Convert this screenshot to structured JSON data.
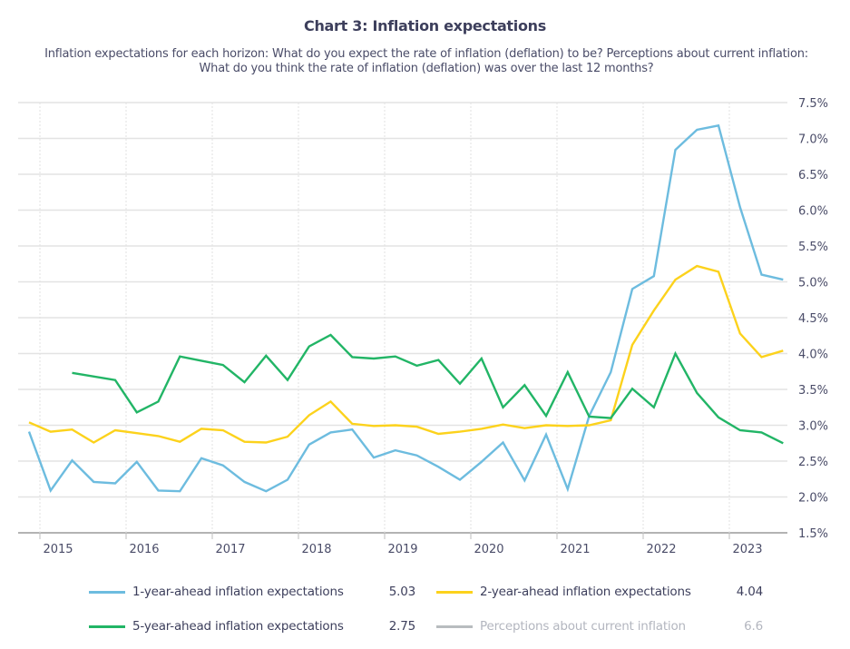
{
  "chart_data": {
    "type": "line",
    "title": "Chart 3: Inflation expectations",
    "subtitle": "Inflation expectations for each horizon: What do you expect the rate of inflation (deflation) to be? Perceptions about current inflation: What do you think the rate of inflation (deflation) was over the last 12 months?",
    "xlabel": "",
    "ylabel": "",
    "x": [
      "2014Q4",
      "2015Q1",
      "2015Q2",
      "2015Q3",
      "2015Q4",
      "2016Q1",
      "2016Q2",
      "2016Q3",
      "2016Q4",
      "2017Q1",
      "2017Q2",
      "2017Q3",
      "2017Q4",
      "2018Q1",
      "2018Q2",
      "2018Q3",
      "2018Q4",
      "2019Q1",
      "2019Q2",
      "2019Q3",
      "2019Q4",
      "2020Q1",
      "2020Q2",
      "2020Q3",
      "2020Q4",
      "2021Q1",
      "2021Q2",
      "2021Q3",
      "2021Q4",
      "2022Q1",
      "2022Q2",
      "2022Q3",
      "2022Q4",
      "2023Q1",
      "2023Q2",
      "2023Q3"
    ],
    "x_tick_labels": [
      "2015",
      "2016",
      "2017",
      "2018",
      "2019",
      "2020",
      "2021",
      "2022",
      "2023"
    ],
    "y_tick_labels": [
      "7.5%",
      "7.0%",
      "6.5%",
      "6.0%",
      "5.5%",
      "5.0%",
      "4.5%",
      "4.0%",
      "3.5%",
      "3.0%",
      "2.5%",
      "2.0%",
      "1.5%"
    ],
    "ylim": [
      1.5,
      7.5
    ],
    "y_axis_position": "right",
    "grid": true,
    "legend_position": "bottom",
    "series": [
      {
        "name": "1-year-ahead inflation expectations",
        "color": "#6dbcdf",
        "latest": "5.03",
        "visible": true,
        "values": [
          2.91,
          2.09,
          2.51,
          2.21,
          2.19,
          2.49,
          2.09,
          2.08,
          2.54,
          2.44,
          2.21,
          2.08,
          2.24,
          2.73,
          2.9,
          2.94,
          2.55,
          2.65,
          2.58,
          2.42,
          2.24,
          2.49,
          2.76,
          2.23,
          2.87,
          2.11,
          3.13,
          3.74,
          4.9,
          5.08,
          6.84,
          7.12,
          7.18,
          6.04,
          5.1,
          5.03
        ]
      },
      {
        "name": "2-year-ahead inflation expectations",
        "color": "#fcd21c",
        "latest": "4.04",
        "visible": true,
        "values": [
          3.04,
          2.91,
          2.94,
          2.76,
          2.93,
          2.89,
          2.85,
          2.77,
          2.95,
          2.93,
          2.77,
          2.76,
          2.84,
          3.14,
          3.33,
          3.02,
          2.99,
          3.0,
          2.98,
          2.88,
          2.91,
          2.95,
          3.01,
          2.96,
          3.0,
          2.99,
          3.0,
          3.07,
          4.12,
          4.6,
          5.03,
          5.22,
          5.14,
          4.28,
          3.95,
          4.04
        ]
      },
      {
        "name": "5-year-ahead inflation expectations",
        "color": "#22b566",
        "latest": "2.75",
        "visible": true,
        "values": [
          null,
          null,
          3.73,
          null,
          3.63,
          3.18,
          3.33,
          3.96,
          3.9,
          3.84,
          3.6,
          3.97,
          3.63,
          4.1,
          4.26,
          3.95,
          3.93,
          3.96,
          3.83,
          3.91,
          3.58,
          3.93,
          3.25,
          3.56,
          3.13,
          3.74,
          3.12,
          3.1,
          3.51,
          3.25,
          4.0,
          3.45,
          3.11,
          2.93,
          2.9,
          2.75
        ]
      },
      {
        "name": "Perceptions about current inflation",
        "color": "#b8bcbf",
        "latest": "6.6",
        "visible": false,
        "values": []
      }
    ]
  }
}
